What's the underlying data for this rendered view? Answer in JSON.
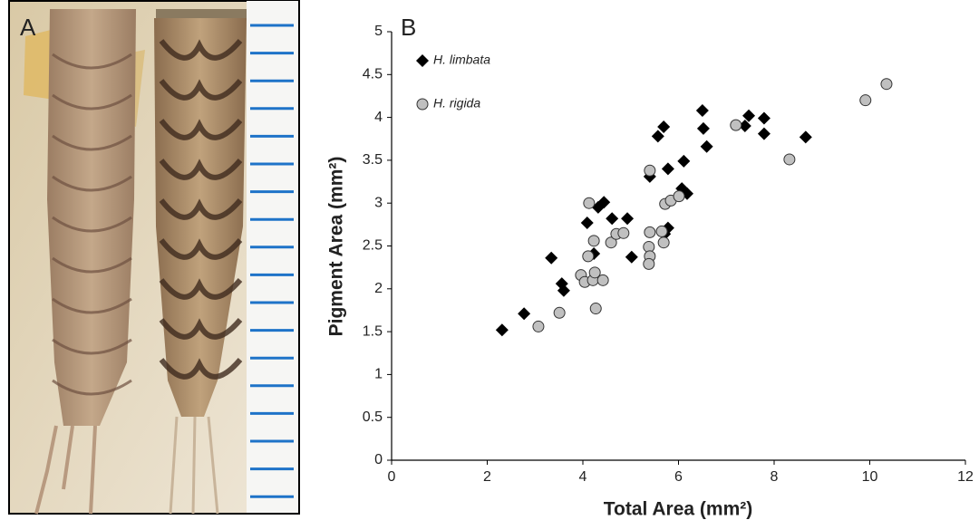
{
  "panel_labels": [
    "A",
    "B"
  ],
  "chart_data": {
    "type": "scatter",
    "x_label": "Total Area (mm²)",
    "y_label": "Pigment Area (mm²)",
    "xlim": [
      0,
      12
    ],
    "ylim": [
      0,
      5
    ],
    "xticks": [
      0,
      2,
      4,
      6,
      8,
      10,
      12
    ],
    "yticks": [
      0,
      0.5,
      1,
      1.5,
      2,
      2.5,
      3,
      3.5,
      4,
      4.5,
      5
    ],
    "series": [
      {
        "name": "H. limbata",
        "color": "#000000",
        "marker": "diamond",
        "x": [
          2.31,
          2.77,
          3.34,
          3.56,
          3.6,
          4.09,
          4.23,
          4.32,
          4.44,
          4.61,
          4.93,
          5.02,
          5.4,
          5.57,
          5.69,
          5.78,
          5.78,
          6.11,
          6.07,
          6.18,
          6.5,
          6.52,
          6.59,
          7.39,
          7.47,
          7.79,
          7.79,
          8.66,
          5.71
        ],
        "values": [
          1.52,
          1.71,
          2.36,
          2.06,
          1.98,
          2.77,
          2.41,
          2.95,
          3.01,
          2.82,
          2.82,
          2.37,
          3.31,
          3.78,
          3.89,
          3.4,
          2.71,
          3.49,
          3.17,
          3.11,
          4.08,
          3.87,
          3.66,
          3.9,
          4.02,
          3.99,
          3.81,
          3.77,
          2.64
        ]
      },
      {
        "name": "H. rigida",
        "color": "#c0c0c0",
        "marker": "circle",
        "x": [
          3.07,
          3.51,
          3.96,
          4.04,
          4.13,
          4.11,
          4.21,
          4.25,
          4.27,
          4.23,
          4.42,
          4.59,
          4.7,
          4.85,
          5.4,
          5.4,
          5.38,
          5.4,
          5.38,
          5.69,
          5.65,
          5.72,
          5.84,
          6.01,
          7.2,
          8.32,
          9.91,
          10.35
        ],
        "values": [
          1.56,
          1.72,
          2.16,
          2.08,
          3.0,
          2.38,
          2.1,
          2.19,
          1.77,
          2.56,
          2.1,
          2.54,
          2.64,
          2.65,
          3.38,
          2.66,
          2.49,
          2.38,
          2.29,
          2.54,
          2.67,
          2.99,
          3.03,
          3.08,
          3.91,
          3.51,
          4.2,
          4.39
        ]
      }
    ]
  }
}
